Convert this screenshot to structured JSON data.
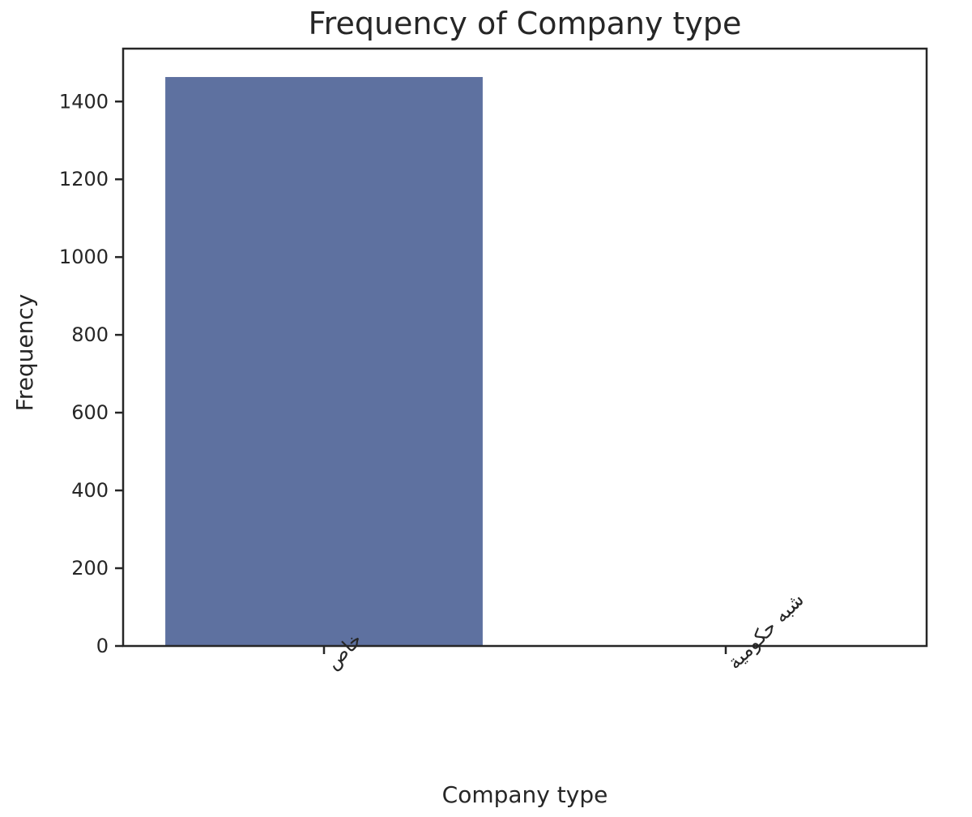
{
  "chart_data": {
    "type": "bar",
    "title": "Frequency of Company type",
    "xlabel": "Company type",
    "ylabel": "Frequency",
    "categories": [
      "خاص",
      "شبه حكومية"
    ],
    "values": [
      1463,
      0
    ],
    "ylim": [
      0,
      1536
    ],
    "yticks": [
      "0",
      "200",
      "400",
      "600",
      "800",
      "1000",
      "1200",
      "1400"
    ],
    "bar_color": "#5e71a0",
    "grid": false,
    "legend": "none",
    "x_tick_rotation": 45
  }
}
